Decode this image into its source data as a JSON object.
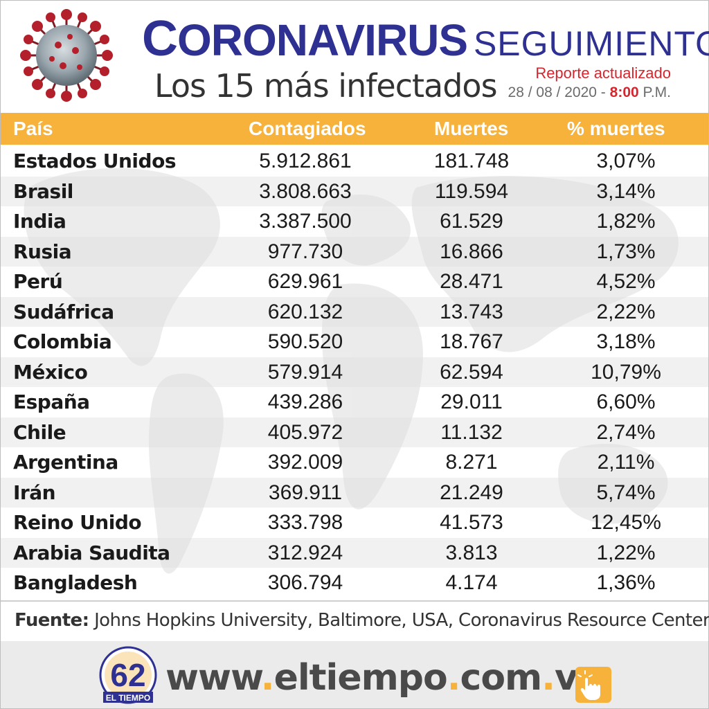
{
  "header": {
    "title_main": "Coronavirus",
    "title_secondary": "SEGUIMIENTO",
    "subtitle": "Los 15 más infectados",
    "report_label": "Reporte actualizado",
    "report_date": "28 / 08 / 2020 -",
    "report_time": "8:00",
    "report_meridiem": "P.M."
  },
  "table": {
    "columns": [
      "País",
      "Contagiados",
      "Muertes",
      "% muertes"
    ],
    "rows": [
      {
        "pais": "Estados Unidos",
        "contagiados": "5.912.861",
        "muertes": "181.748",
        "pct": "3,07%"
      },
      {
        "pais": "Brasil",
        "contagiados": "3.808.663",
        "muertes": "119.594",
        "pct": "3,14%"
      },
      {
        "pais": "India",
        "contagiados": "3.387.500",
        "muertes": "61.529",
        "pct": "1,82%"
      },
      {
        "pais": "Rusia",
        "contagiados": "977.730",
        "muertes": "16.866",
        "pct": "1,73%"
      },
      {
        "pais": "Perú",
        "contagiados": "629.961",
        "muertes": "28.471",
        "pct": "4,52%"
      },
      {
        "pais": "Sudáfrica",
        "contagiados": "620.132",
        "muertes": "13.743",
        "pct": "2,22%"
      },
      {
        "pais": "Colombia",
        "contagiados": "590.520",
        "muertes": "18.767",
        "pct": "3,18%"
      },
      {
        "pais": "México",
        "contagiados": "579.914",
        "muertes": "62.594",
        "pct": "10,79%"
      },
      {
        "pais": "España",
        "contagiados": "439.286",
        "muertes": "29.011",
        "pct": "6,60%"
      },
      {
        "pais": "Chile",
        "contagiados": "405.972",
        "muertes": "11.132",
        "pct": "2,74%"
      },
      {
        "pais": "Argentina",
        "contagiados": "392.009",
        "muertes": "8.271",
        "pct": "2,11%"
      },
      {
        "pais": "Irán",
        "contagiados": "369.911",
        "muertes": "21.249",
        "pct": "5,74%"
      },
      {
        "pais": "Reino Unido",
        "contagiados": "333.798",
        "muertes": "41.573",
        "pct": "12,45%"
      },
      {
        "pais": "Arabia Saudita",
        "contagiados": "312.924",
        "muertes": "3.813",
        "pct": "1,22%"
      },
      {
        "pais": "Bangladesh",
        "contagiados": "306.794",
        "muertes": "4.174",
        "pct": "1,36%"
      }
    ]
  },
  "footer": {
    "source_label": "Fuente:",
    "source_text": "Johns Hopkins University, Baltimore, USA, Coronavirus Resource Center",
    "logo_number": "62",
    "logo_name": "EL TIEMPO",
    "website": {
      "www": "www",
      "domain": "eltiempo",
      "tld1": "com",
      "tld2": "ve",
      "dot": "."
    },
    "icons": [
      "virus-icon",
      "tap-hand-icon"
    ],
    "colors": {
      "accent": "#f6b23a",
      "title_blue": "#2e3192",
      "red": "#d6262d"
    }
  }
}
